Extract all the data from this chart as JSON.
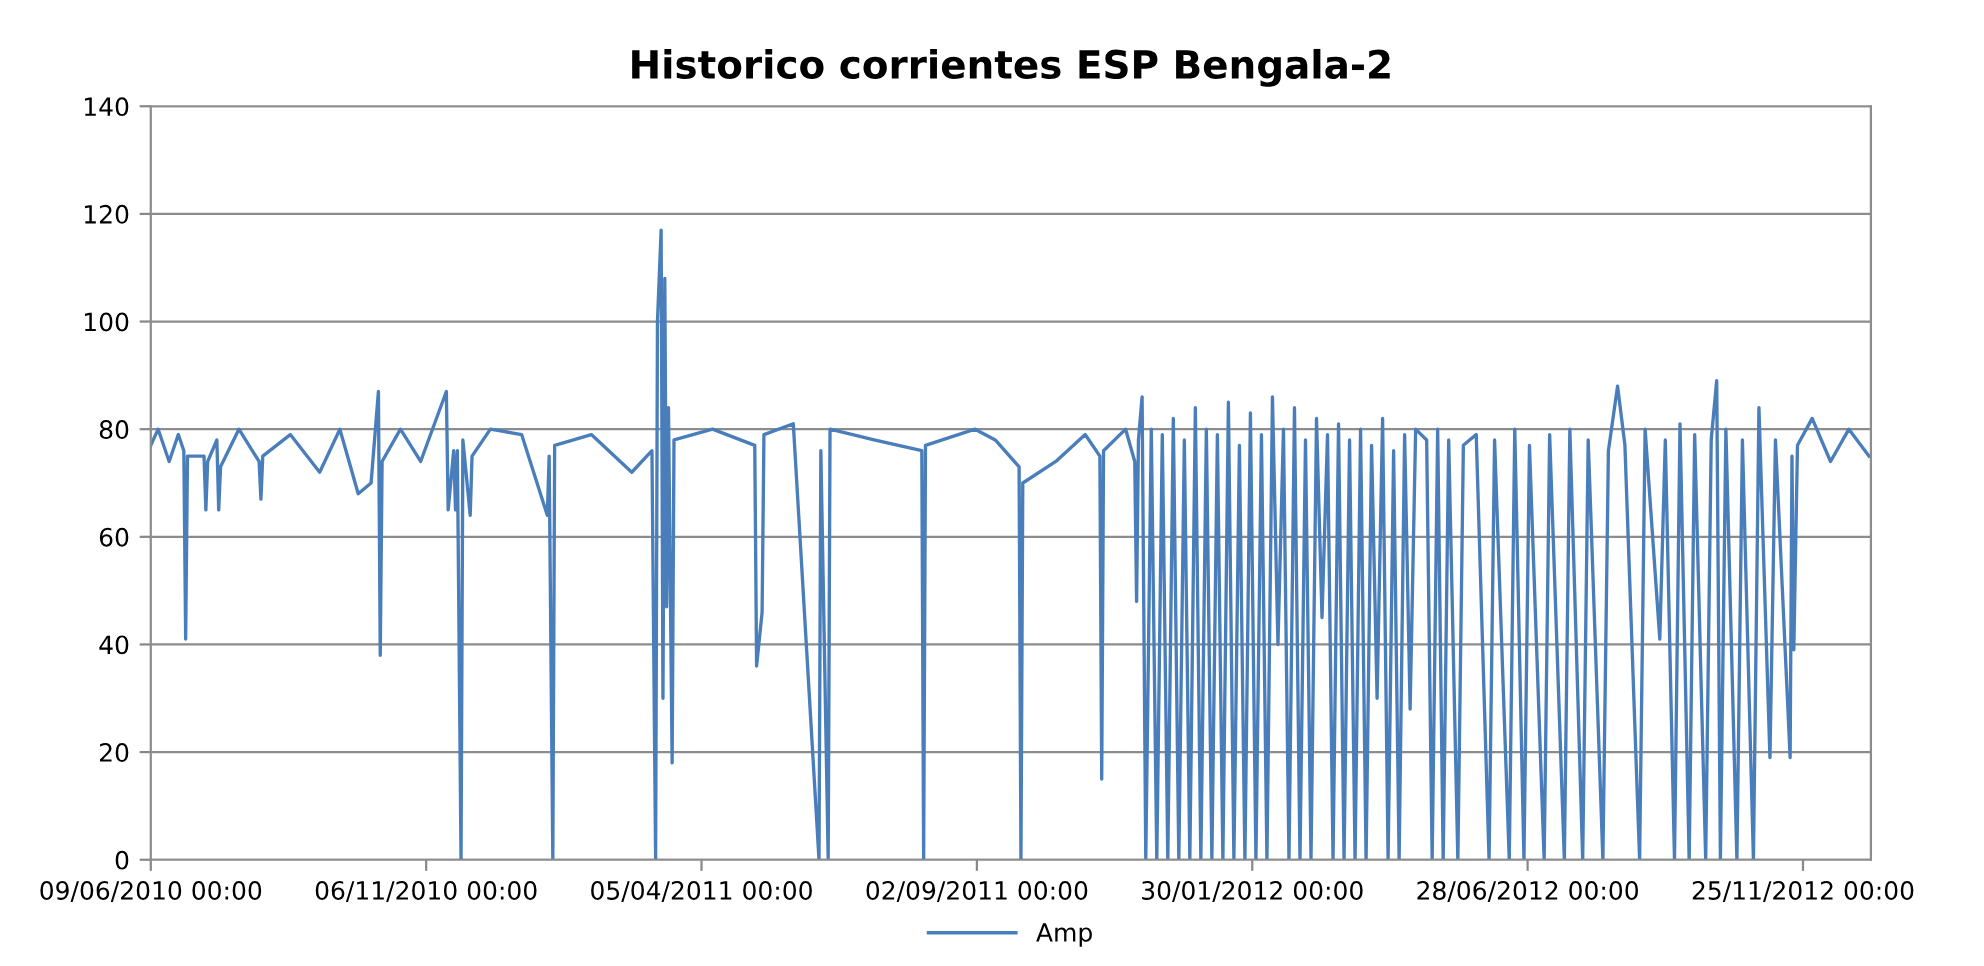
{
  "chart_data": {
    "type": "line",
    "title": "Historico corrientes ESP Bengala-2",
    "x": [
      "2010-06-09",
      "2010-06-13",
      "2010-06-19",
      "2010-06-24",
      "2010-06-27",
      "2010-06-28",
      "2010-06-29",
      "2010-07-08",
      "2010-07-09",
      "2010-07-10",
      "2010-07-15",
      "2010-07-16",
      "2010-07-17",
      "2010-07-27",
      "2010-08-07",
      "2010-08-08",
      "2010-08-09",
      "2010-08-24",
      "2010-09-09",
      "2010-09-20",
      "2010-09-30",
      "2010-10-07",
      "2010-10-11",
      "2010-10-12",
      "2010-10-13",
      "2010-10-23",
      "2010-11-03",
      "2010-11-17",
      "2010-11-18",
      "2010-11-21",
      "2010-11-22",
      "2010-11-23",
      "2010-11-25",
      "2010-11-26",
      "2010-11-30",
      "2010-12-01",
      "2010-12-11",
      "2010-12-28",
      "2011-01-11",
      "2011-01-12",
      "2011-01-14",
      "2011-01-15",
      "2011-02-04",
      "2011-02-26",
      "2011-03-09",
      "2011-03-11",
      "2011-03-12",
      "2011-03-14",
      "2011-03-15",
      "2011-03-16",
      "2011-03-17",
      "2011-03-18",
      "2011-03-20",
      "2011-03-21",
      "2011-04-11",
      "2011-05-04",
      "2011-05-05",
      "2011-05-08",
      "2011-05-09",
      "2011-05-25",
      "2011-06-08",
      "2011-06-09",
      "2011-06-13",
      "2011-06-14",
      "2011-07-08",
      "2011-08-03",
      "2011-08-04",
      "2011-08-05",
      "2011-09-01",
      "2011-09-12",
      "2011-09-25",
      "2011-09-26",
      "2011-09-27",
      "2011-10-15",
      "2011-10-31",
      "2011-11-08",
      "2011-11-09",
      "2011-11-10",
      "2011-11-22",
      "2011-11-27",
      "2011-11-28",
      "2011-11-29",
      "2011-12-01",
      "2011-12-03",
      "2011-12-06",
      "2011-12-09",
      "2011-12-12",
      "2011-12-15",
      "2011-12-18",
      "2011-12-21",
      "2011-12-24",
      "2011-12-27",
      "2011-12-30",
      "2012-01-02",
      "2012-01-05",
      "2012-01-08",
      "2012-01-11",
      "2012-01-14",
      "2012-01-17",
      "2012-01-20",
      "2012-01-23",
      "2012-01-26",
      "2012-01-29",
      "2012-02-01",
      "2012-02-04",
      "2012-02-07",
      "2012-02-10",
      "2012-02-13",
      "2012-02-16",
      "2012-02-19",
      "2012-02-22",
      "2012-02-25",
      "2012-02-28",
      "2012-03-02",
      "2012-03-05",
      "2012-03-08",
      "2012-03-11",
      "2012-03-14",
      "2012-03-17",
      "2012-03-20",
      "2012-03-23",
      "2012-03-26",
      "2012-03-29",
      "2012-04-01",
      "2012-04-04",
      "2012-04-07",
      "2012-04-10",
      "2012-04-13",
      "2012-04-16",
      "2012-04-19",
      "2012-04-22",
      "2012-04-25",
      "2012-04-28",
      "2012-05-04",
      "2012-05-07",
      "2012-05-10",
      "2012-05-13",
      "2012-05-16",
      "2012-05-21",
      "2012-05-24",
      "2012-05-31",
      "2012-06-07",
      "2012-06-10",
      "2012-06-18",
      "2012-06-21",
      "2012-06-26",
      "2012-06-29",
      "2012-07-07",
      "2012-07-10",
      "2012-07-18",
      "2012-07-21",
      "2012-07-28",
      "2012-07-31",
      "2012-08-08",
      "2012-08-11",
      "2012-08-16",
      "2012-08-20",
      "2012-08-28",
      "2012-08-31",
      "2012-09-08",
      "2012-09-11",
      "2012-09-16",
      "2012-09-19",
      "2012-09-24",
      "2012-09-27",
      "2012-10-03",
      "2012-10-06",
      "2012-10-09",
      "2012-10-11",
      "2012-10-14",
      "2012-10-20",
      "2012-10-23",
      "2012-10-29",
      "2012-11-01",
      "2012-11-07",
      "2012-11-10",
      "2012-11-18",
      "2012-11-19",
      "2012-11-20",
      "2012-11-22",
      "2012-11-30",
      "2012-12-10",
      "2012-12-20",
      "2012-12-31"
    ],
    "series": [
      {
        "name": "Amp",
        "color": "#4a7ebb",
        "values": [
          77,
          80,
          74,
          79,
          76,
          41,
          75,
          75,
          65,
          74,
          78,
          65,
          73,
          80,
          74,
          67,
          75,
          79,
          72,
          80,
          68,
          70,
          87,
          38,
          74,
          80,
          74,
          87,
          65,
          76,
          65,
          76,
          0,
          78,
          64,
          75,
          80,
          79,
          64,
          75,
          0,
          77,
          79,
          72,
          76,
          0,
          100,
          117,
          30,
          108,
          47,
          84,
          18,
          78,
          80,
          77,
          36,
          46,
          79,
          81,
          0,
          76,
          0,
          80,
          78,
          76,
          0,
          77,
          80,
          78,
          73,
          0,
          70,
          74,
          79,
          75,
          15,
          76,
          80,
          74,
          48,
          78,
          86,
          0,
          80,
          0,
          79,
          0,
          82,
          0,
          78,
          0,
          84,
          0,
          80,
          0,
          79,
          0,
          85,
          0,
          77,
          0,
          83,
          0,
          79,
          0,
          86,
          40,
          80,
          0,
          84,
          0,
          78,
          0,
          82,
          45,
          79,
          0,
          81,
          0,
          78,
          0,
          80,
          0,
          77,
          30,
          82,
          0,
          76,
          0,
          79,
          28,
          80,
          78,
          0,
          80,
          0,
          78,
          0,
          77,
          79,
          0,
          78,
          0,
          80,
          0,
          77,
          0,
          79,
          0,
          80,
          0,
          78,
          0,
          76,
          88,
          77,
          0,
          80,
          41,
          78,
          0,
          81,
          0,
          79,
          0,
          78,
          89,
          0,
          80,
          0,
          78,
          0,
          84,
          19,
          78,
          19,
          75,
          39,
          77,
          82,
          74,
          80,
          75
        ]
      }
    ],
    "xlim": [
      "2010-06-09",
      "2013-01-01"
    ],
    "xticks": [
      {
        "value": "2010-06-09",
        "label": "09/06/2010 00:00"
      },
      {
        "value": "2010-11-06",
        "label": "06/11/2010 00:00"
      },
      {
        "value": "2011-04-05",
        "label": "05/04/2011 00:00"
      },
      {
        "value": "2011-09-02",
        "label": "02/09/2011 00:00"
      },
      {
        "value": "2012-01-30",
        "label": "30/01/2012 00:00"
      },
      {
        "value": "2012-06-28",
        "label": "28/06/2012 00:00"
      },
      {
        "value": "2012-11-25",
        "label": "25/11/2012 00:00"
      }
    ],
    "ylim": [
      0,
      140
    ],
    "yticks": [
      0,
      20,
      40,
      60,
      80,
      100,
      120,
      140
    ],
    "grid": "y",
    "legend": "bottom",
    "marker": "none",
    "line_style": "solid"
  }
}
